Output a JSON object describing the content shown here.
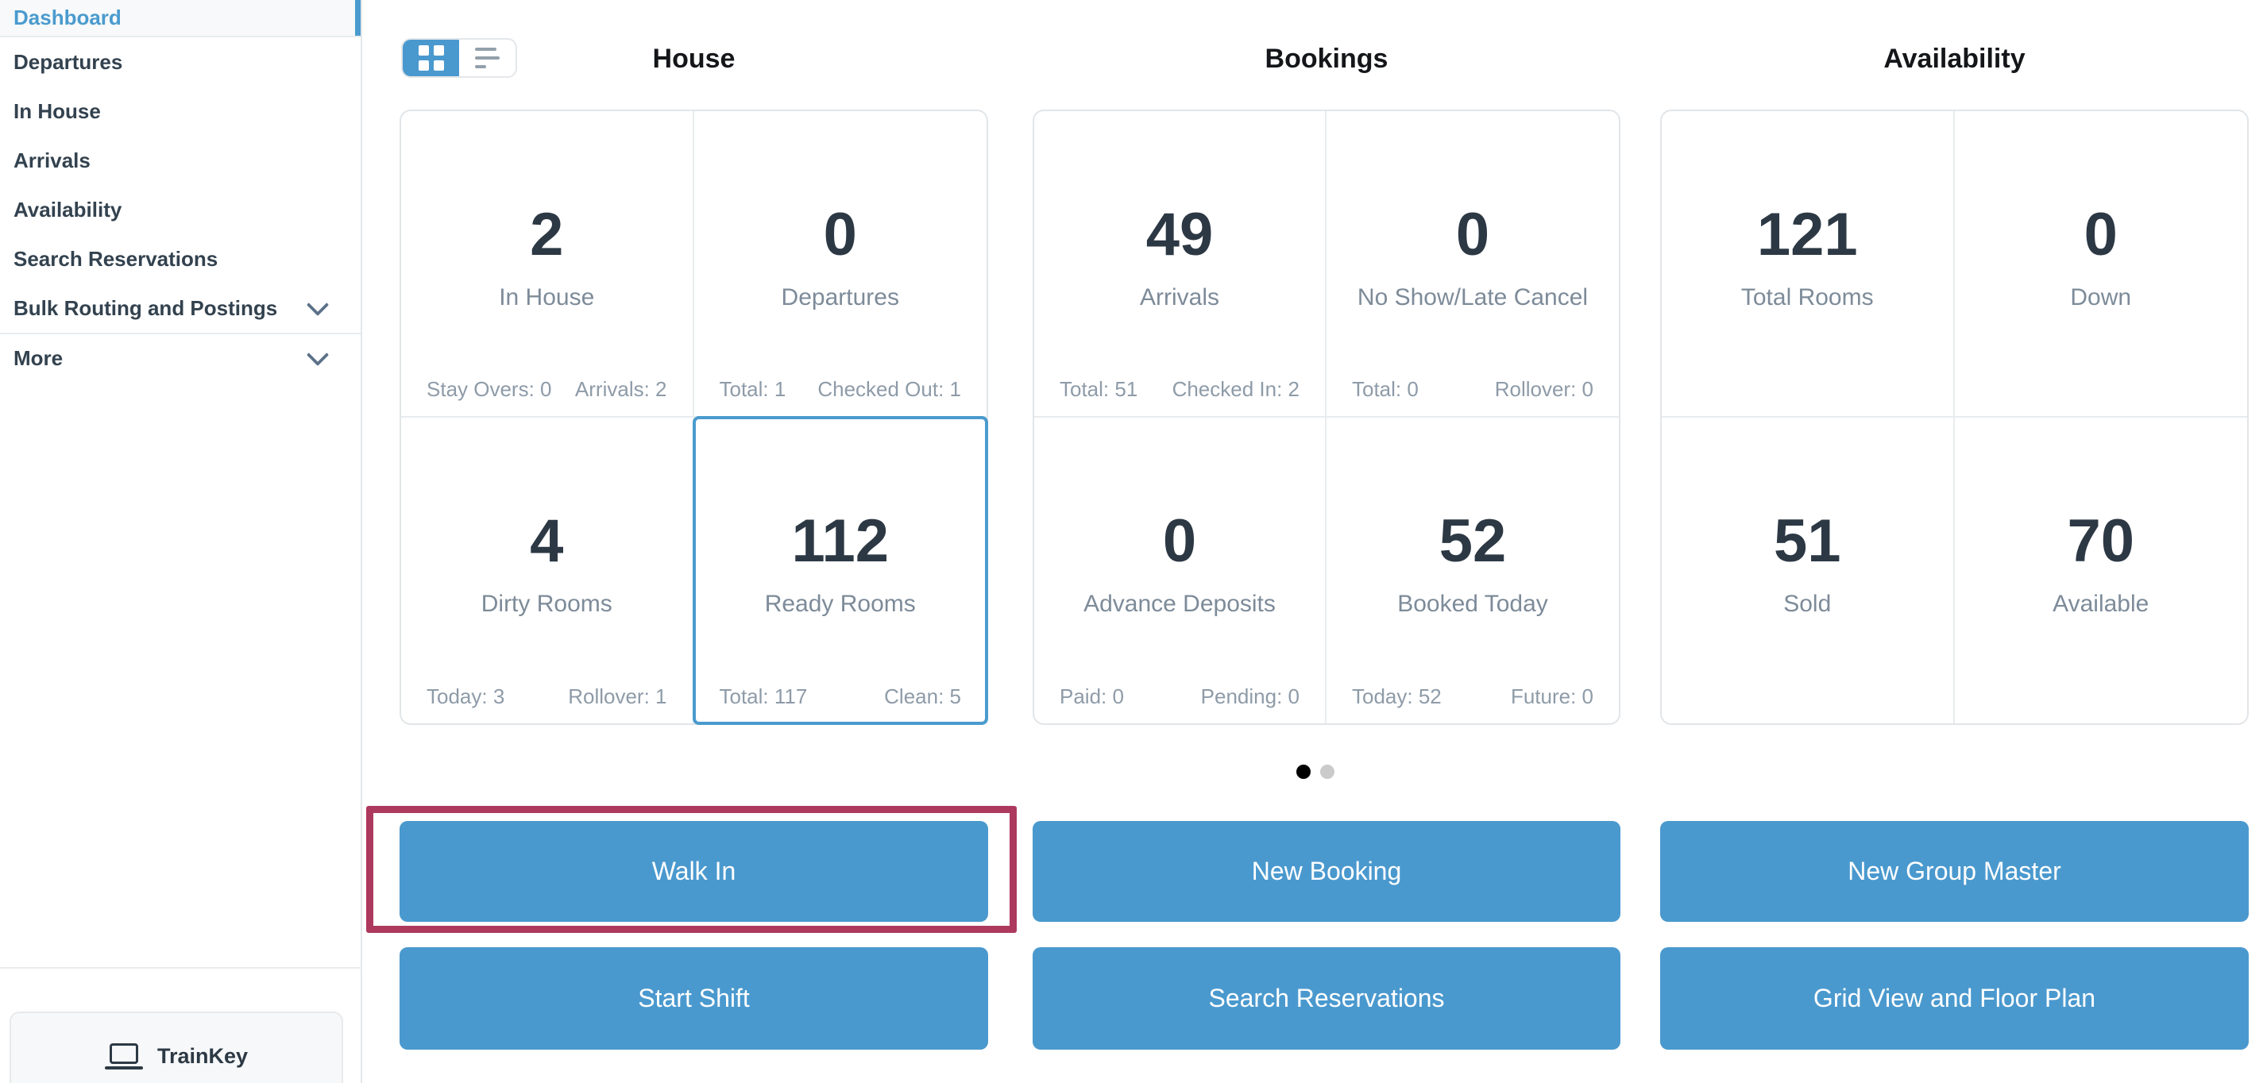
{
  "colors": {
    "accent_blue": "#4a99ce",
    "highlight_maroon": "#ad3a5e",
    "number_dark": "#2c3844",
    "label_gray": "#7d8b99",
    "footer_gray": "#8e9ba8",
    "sidebar_text": "#33424f",
    "border_light": "#e2e5e8"
  },
  "sidebar": {
    "items": [
      {
        "label": "Dashboard",
        "active": true,
        "has_chevron": false
      },
      {
        "label": "Departures",
        "active": false,
        "has_chevron": false
      },
      {
        "label": "In House",
        "active": false,
        "has_chevron": false
      },
      {
        "label": "Arrivals",
        "active": false,
        "has_chevron": false
      },
      {
        "label": "Availability",
        "active": false,
        "has_chevron": false
      },
      {
        "label": "Search Reservations",
        "active": false,
        "has_chevron": false
      },
      {
        "label": "Bulk Routing and Postings",
        "active": false,
        "has_chevron": true
      },
      {
        "label": "More",
        "active": false,
        "has_chevron": true
      }
    ],
    "footer_button": "TrainKey"
  },
  "view_toggle": {
    "grid_view": "grid-view",
    "list_view": "list-view",
    "selected": "grid-view"
  },
  "sections": [
    {
      "title": "House",
      "cards": [
        {
          "value": "2",
          "label": "In House",
          "footer_left": "Stay Overs: 0",
          "footer_right": "Arrivals: 2",
          "has_menu": true,
          "highlighted": false
        },
        {
          "value": "0",
          "label": "Departures",
          "footer_left": "Total: 1",
          "footer_right": "Checked Out: 1",
          "has_menu": true,
          "highlighted": false
        },
        {
          "value": "4",
          "label": "Dirty Rooms",
          "footer_left": "Today: 3",
          "footer_right": "Rollover: 1",
          "has_menu": true,
          "highlighted": false
        },
        {
          "value": "112",
          "label": "Ready Rooms",
          "footer_left": "Total: 117",
          "footer_right": "Clean: 5",
          "has_menu": true,
          "highlighted": true
        }
      ]
    },
    {
      "title": "Bookings",
      "cards": [
        {
          "value": "49",
          "label": "Arrivals",
          "footer_left": "Total: 51",
          "footer_right": "Checked In: 2",
          "has_menu": true,
          "highlighted": false
        },
        {
          "value": "0",
          "label": "No Show/Late Cancel",
          "footer_left": "Total: 0",
          "footer_right": "Rollover: 0",
          "has_menu": true,
          "highlighted": false
        },
        {
          "value": "0",
          "label": "Advance Deposits",
          "footer_left": "Paid: 0",
          "footer_right": "Pending: 0",
          "has_menu": true,
          "highlighted": false
        },
        {
          "value": "52",
          "label": "Booked Today",
          "footer_left": "Today: 52",
          "footer_right": "Future: 0",
          "has_menu": true,
          "highlighted": false
        }
      ]
    },
    {
      "title": "Availability",
      "cards": [
        {
          "value": "121",
          "label": "Total Rooms",
          "has_menu": false,
          "highlighted": false
        },
        {
          "value": "0",
          "label": "Down",
          "has_menu": true,
          "highlighted": false
        },
        {
          "value": "51",
          "label": "Sold",
          "has_menu": false,
          "highlighted": false
        },
        {
          "value": "70",
          "label": "Available",
          "has_menu": true,
          "highlighted": false
        }
      ]
    }
  ],
  "carousel": {
    "dots": [
      {
        "active": true
      },
      {
        "active": false
      }
    ]
  },
  "actions": {
    "rows": [
      [
        "Walk In",
        "New Booking",
        "New Group Master"
      ],
      [
        "Start Shift",
        "Search Reservations",
        "Grid View and Floor Plan"
      ]
    ],
    "highlighted_action": "Walk In"
  }
}
